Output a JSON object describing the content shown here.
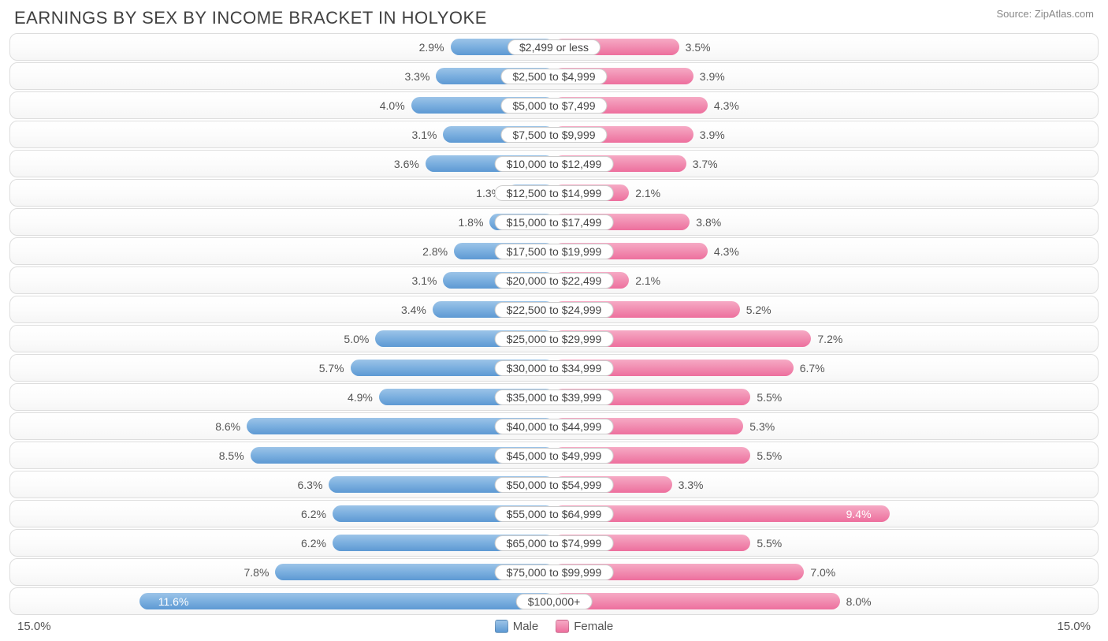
{
  "title": "EARNINGS BY SEX BY INCOME BRACKET IN HOLYOKE",
  "source": "Source: ZipAtlas.com",
  "axis_max": 15.0,
  "axis_left_label": "15.0%",
  "axis_right_label": "15.0%",
  "colors": {
    "male_top": "#9cc4e8",
    "male_mid": "#7bafdf",
    "male_bot": "#5d99d3",
    "female_top": "#f6aac5",
    "female_mid": "#f18db1",
    "female_bot": "#ed6f9d",
    "row_border": "#dddddd",
    "text": "#555555",
    "title_text": "#404040",
    "source_text": "#888888",
    "background": "#ffffff"
  },
  "legend": {
    "male": "Male",
    "female": "Female"
  },
  "rows": [
    {
      "bracket": "$2,499 or less",
      "male": 2.9,
      "female": 3.5
    },
    {
      "bracket": "$2,500 to $4,999",
      "male": 3.3,
      "female": 3.9
    },
    {
      "bracket": "$5,000 to $7,499",
      "male": 4.0,
      "female": 4.3
    },
    {
      "bracket": "$7,500 to $9,999",
      "male": 3.1,
      "female": 3.9
    },
    {
      "bracket": "$10,000 to $12,499",
      "male": 3.6,
      "female": 3.7
    },
    {
      "bracket": "$12,500 to $14,999",
      "male": 1.3,
      "female": 2.1
    },
    {
      "bracket": "$15,000 to $17,499",
      "male": 1.8,
      "female": 3.8
    },
    {
      "bracket": "$17,500 to $19,999",
      "male": 2.8,
      "female": 4.3
    },
    {
      "bracket": "$20,000 to $22,499",
      "male": 3.1,
      "female": 2.1
    },
    {
      "bracket": "$22,500 to $24,999",
      "male": 3.4,
      "female": 5.2
    },
    {
      "bracket": "$25,000 to $29,999",
      "male": 5.0,
      "female": 7.2
    },
    {
      "bracket": "$30,000 to $34,999",
      "male": 5.7,
      "female": 6.7
    },
    {
      "bracket": "$35,000 to $39,999",
      "male": 4.9,
      "female": 5.5
    },
    {
      "bracket": "$40,000 to $44,999",
      "male": 8.6,
      "female": 5.3
    },
    {
      "bracket": "$45,000 to $49,999",
      "male": 8.5,
      "female": 5.5
    },
    {
      "bracket": "$50,000 to $54,999",
      "male": 6.3,
      "female": 3.3
    },
    {
      "bracket": "$55,000 to $64,999",
      "male": 6.2,
      "female": 9.4
    },
    {
      "bracket": "$65,000 to $74,999",
      "male": 6.2,
      "female": 5.5
    },
    {
      "bracket": "$75,000 to $99,999",
      "male": 7.8,
      "female": 7.0
    },
    {
      "bracket": "$100,000+",
      "male": 11.6,
      "female": 8.0
    }
  ],
  "typography": {
    "title_fontsize": 22,
    "label_fontsize": 14,
    "source_fontsize": 13,
    "footer_fontsize": 15
  },
  "value_label_inside_threshold": 9.0
}
